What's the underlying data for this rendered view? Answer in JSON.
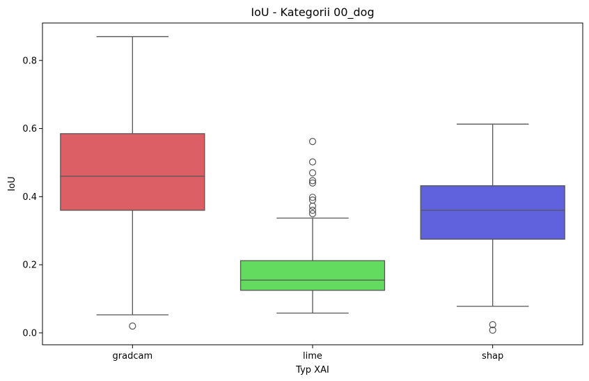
{
  "chart_data": {
    "type": "box",
    "title": "IoU - Kategorii 00_dog",
    "xlabel": "Typ XAI",
    "ylabel": "IoU",
    "ylim": [
      -0.035,
      0.91
    ],
    "yticks": [
      0.0,
      0.2,
      0.4,
      0.6,
      0.8
    ],
    "ytick_labels": [
      "0.0",
      "0.2",
      "0.4",
      "0.6",
      "0.8"
    ],
    "grid": false,
    "categories": [
      "gradcam",
      "lime",
      "shap"
    ],
    "boxes": [
      {
        "category": "gradcam",
        "color": "#dc5f66",
        "whisker_low": 0.053,
        "q1": 0.36,
        "median": 0.46,
        "q3": 0.585,
        "whisker_high": 0.87,
        "outliers": [
          0.02
        ]
      },
      {
        "category": "lime",
        "color": "#62db5f",
        "whisker_low": 0.058,
        "q1": 0.125,
        "median": 0.155,
        "q3": 0.212,
        "whisker_high": 0.337,
        "outliers": [
          0.35,
          0.36,
          0.372,
          0.39,
          0.398,
          0.44,
          0.447,
          0.47,
          0.502,
          0.562
        ]
      },
      {
        "category": "shap",
        "color": "#5f62dc",
        "whisker_low": 0.078,
        "q1": 0.275,
        "median": 0.36,
        "q3": 0.432,
        "whisker_high": 0.613,
        "outliers": [
          0.024,
          0.008
        ]
      }
    ]
  }
}
